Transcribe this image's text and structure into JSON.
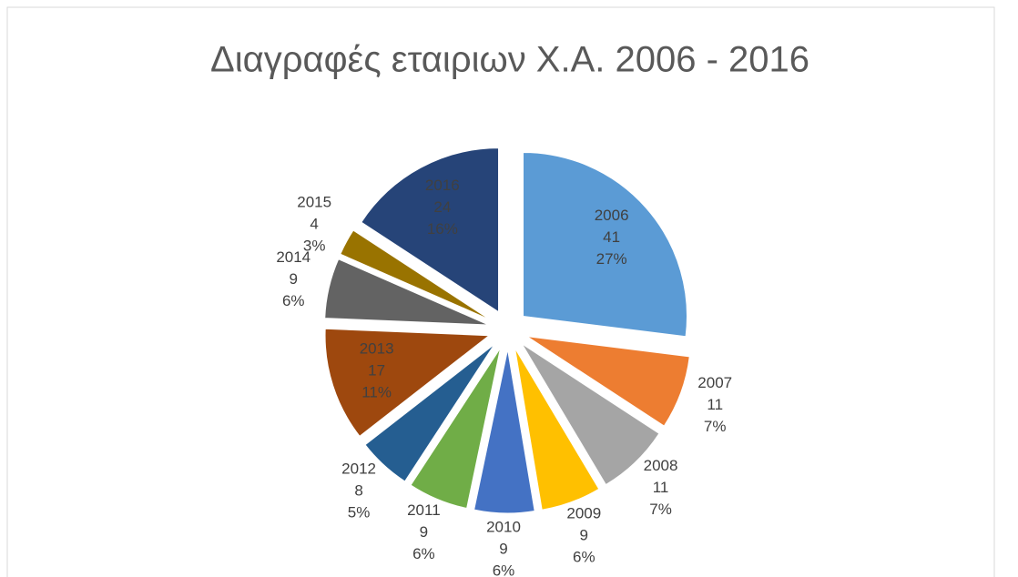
{
  "chart_data": {
    "type": "pie",
    "title": "Διαγραφές εταιριων Χ.Α. 2006 - 2016",
    "categories": [
      "2006",
      "2007",
      "2008",
      "2009",
      "2010",
      "2011",
      "2012",
      "2013",
      "2014",
      "2015",
      "2016"
    ],
    "values": [
      41,
      11,
      11,
      9,
      9,
      9,
      8,
      17,
      9,
      4,
      24
    ],
    "percent_labels": [
      "27%",
      "7%",
      "7%",
      "6%",
      "6%",
      "6%",
      "5%",
      "11%",
      "6%",
      "3%",
      "16%"
    ],
    "colors": [
      "#5b9bd5",
      "#ed7d31",
      "#a5a5a5",
      "#ffc000",
      "#4472c4",
      "#70ad47",
      "#255e91",
      "#9e480e",
      "#636363",
      "#997300",
      "#264478"
    ],
    "exploded": true
  }
}
